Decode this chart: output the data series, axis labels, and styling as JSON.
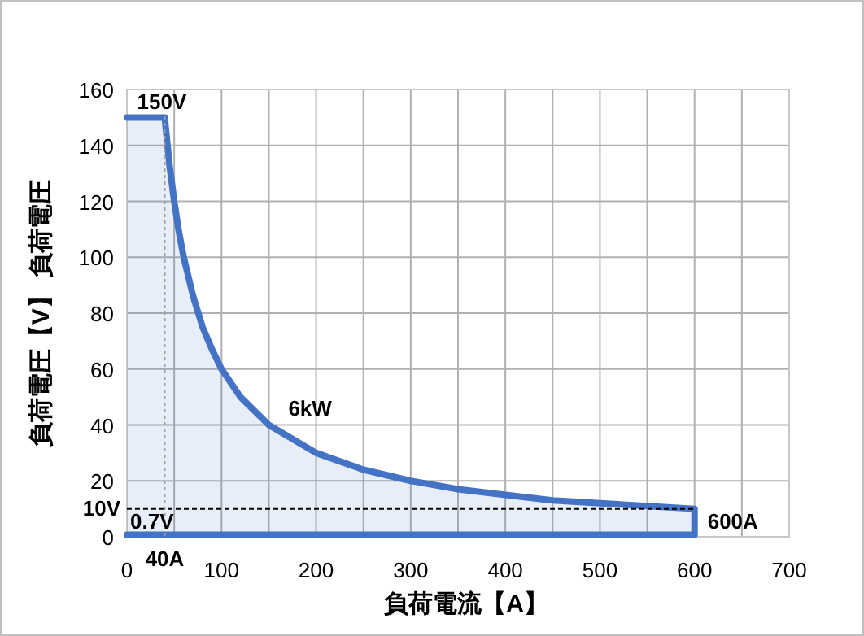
{
  "chart_data": {
    "type": "area",
    "xlabel": "負荷電流【A】",
    "ylabel": "負荷電圧【V】 負荷電圧",
    "xlim": [
      0,
      700
    ],
    "ylim": [
      0,
      160
    ],
    "xticks": [
      0,
      {
        "value": 50,
        "label": null
      },
      100,
      {
        "value": 150,
        "label": null
      },
      200,
      {
        "value": 250,
        "label": null
      },
      300,
      {
        "value": 350,
        "label": null
      },
      400,
      {
        "value": 450,
        "label": null
      },
      500,
      {
        "value": 550,
        "label": null
      },
      600,
      {
        "value": 650,
        "label": null
      },
      700
    ],
    "yticks": [
      0,
      20,
      40,
      60,
      80,
      100,
      120,
      140,
      160
    ],
    "grid": true,
    "series": [
      {
        "color": "#4472c4",
        "x": [
          0,
          40,
          42,
          45,
          50,
          55,
          60,
          70,
          80,
          90,
          100,
          120,
          150,
          200,
          250,
          300,
          350,
          400,
          450,
          500,
          550,
          600,
          600,
          0
        ],
        "values": [
          150,
          150,
          143,
          133,
          120,
          109,
          100,
          86,
          75,
          67,
          60,
          50,
          40,
          30,
          24,
          20,
          17,
          15,
          13,
          12,
          11,
          10,
          0.7,
          0.7
        ]
      }
    ],
    "ref_lines": [
      {
        "axis": "y",
        "value": 10,
        "label": "10V",
        "color": "#000000",
        "line_style": "dashed"
      },
      {
        "axis": "x",
        "value": 40,
        "label": "40A",
        "color": "#a0a0a0",
        "line_style": "dotted"
      }
    ],
    "annotations": [
      {
        "text": "150V",
        "x": 40,
        "y": 150
      },
      {
        "text": "6kW",
        "x": 150,
        "y": 40
      },
      {
        "text": "600A",
        "x": 600,
        "y": 10
      },
      {
        "text": "0.7V",
        "x": 0,
        "y": 0.7
      }
    ]
  }
}
